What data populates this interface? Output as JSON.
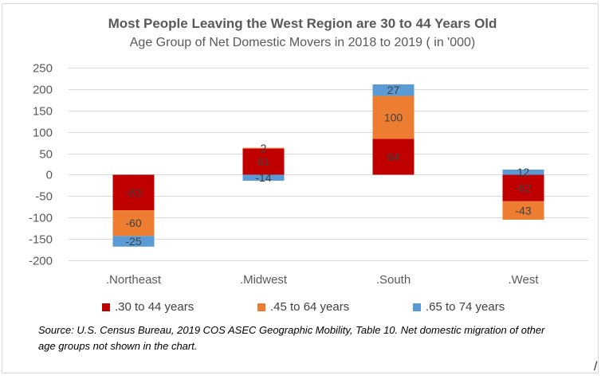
{
  "chart_data": {
    "type": "bar",
    "stacked": true,
    "title": "Most People Leaving the West Region are 30 to 44 Years Old",
    "subtitle": "Age Group of Net Domestic Movers in 2018 to 2019 ( in '000)",
    "categories": [
      ".Northeast",
      ".Midwest",
      ".South",
      ".West"
    ],
    "series": [
      {
        "name": ".30 to 44 years",
        "color": "#c00000",
        "values": [
          -83,
          61,
          84,
          -62
        ],
        "labels": [
          "-83",
          "61",
          "84",
          "-62"
        ]
      },
      {
        "name": ".45 to 64 years",
        "color": "#ed7d31",
        "values": [
          -60,
          2,
          100,
          -43
        ],
        "labels": [
          "-60",
          "2",
          "100",
          "-43"
        ]
      },
      {
        "name": ".65 to 74 years",
        "color": "#5b9bd5",
        "values": [
          -25,
          -14,
          27,
          12
        ],
        "labels": [
          "-25",
          "-14",
          "27",
          "12"
        ]
      }
    ],
    "ylim": [
      -200,
      250
    ],
    "yticks": [
      -200,
      -150,
      -100,
      -50,
      0,
      50,
      100,
      150,
      200,
      250
    ],
    "grid": true,
    "legend": "bottom"
  },
  "source": "Source: U.S. Census Bureau, 2019 COS ASEC Geographic Mobility, Table 10. Net domestic migration of  other age groups not shown in the chart.",
  "corner_mark": "/"
}
